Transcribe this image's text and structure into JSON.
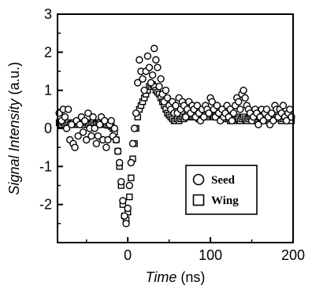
{
  "chart_data": {
    "type": "scatter",
    "title": "",
    "xlabel": "Time",
    "xlabel_unit": " (ns)",
    "ylabel": "Signal Intensity",
    "ylabel_unit": " (a.u.)",
    "xlim": [
      -85,
      200
    ],
    "ylim": [
      -3,
      3
    ],
    "xticks": [
      0,
      100,
      200
    ],
    "yticks": [
      -2,
      -1,
      0,
      1,
      2,
      3
    ],
    "grid": false,
    "legend_position": "lower-right",
    "series": [
      {
        "name": "Seed",
        "marker": "circle",
        "x": [
          -83,
          -80,
          -78,
          -76,
          -74,
          -72,
          -70,
          -68,
          -66,
          -64,
          -62,
          -60,
          -58,
          -56,
          -54,
          -52,
          -50,
          -48,
          -46,
          -44,
          -42,
          -40,
          -38,
          -36,
          -34,
          -32,
          -30,
          -28,
          -26,
          -24,
          -22,
          -20,
          -18,
          -16,
          -14,
          -12,
          -10,
          -8,
          -6,
          -4,
          -2,
          0,
          2,
          4,
          6,
          8,
          10,
          12,
          14,
          16,
          18,
          20,
          22,
          24,
          26,
          28,
          30,
          32,
          34,
          36,
          38,
          40,
          42,
          44,
          46,
          48,
          50,
          52,
          54,
          56,
          58,
          60,
          62,
          64,
          66,
          68,
          70,
          72,
          74,
          76,
          78,
          80,
          82,
          84,
          86,
          88,
          90,
          92,
          94,
          96,
          98,
          100,
          102,
          104,
          106,
          108,
          110,
          112,
          114,
          116,
          118,
          120,
          122,
          124,
          126,
          128,
          130,
          132,
          134,
          136,
          138,
          140,
          142,
          144,
          146,
          148,
          150,
          152,
          154,
          156,
          158,
          160,
          162,
          164,
          166,
          168,
          170,
          172,
          174,
          176,
          178,
          180,
          182,
          184,
          186,
          188,
          190,
          192,
          194,
          196,
          198
        ],
        "y": [
          0.4,
          0.2,
          0.5,
          0.3,
          0.0,
          0.5,
          -0.3,
          0.1,
          -0.4,
          -0.5,
          0.2,
          -0.2,
          0.1,
          0.3,
          -0.1,
          0.2,
          -0.3,
          0.4,
          0.0,
          -0.2,
          0.3,
          0.0,
          -0.4,
          -0.2,
          0.1,
          0.3,
          -0.3,
          0.2,
          -0.5,
          -0.3,
          0.1,
          0.2,
          -0.2,
          0.0,
          -0.3,
          -0.6,
          -0.9,
          -1.4,
          -1.9,
          -2.3,
          -2.5,
          -2.1,
          -1.5,
          -0.9,
          -0.4,
          0.0,
          0.4,
          1.2,
          1.8,
          1.5,
          1.3,
          1.0,
          1.5,
          1.9,
          1.6,
          1.2,
          1.4,
          2.1,
          1.8,
          1.6,
          1.1,
          1.3,
          0.9,
          0.7,
          1.0,
          0.8,
          0.6,
          0.5,
          0.7,
          0.4,
          0.6,
          0.4,
          0.8,
          0.5,
          0.7,
          0.6,
          0.3,
          0.5,
          0.7,
          0.4,
          0.6,
          0.5,
          0.3,
          0.6,
          0.4,
          0.2,
          0.5,
          0.3,
          0.6,
          0.5,
          0.4,
          0.8,
          0.7,
          0.5,
          0.3,
          0.6,
          0.4,
          0.2,
          0.5,
          0.3,
          0.4,
          0.6,
          0.3,
          0.5,
          0.2,
          0.4,
          0.6,
          0.8,
          0.7,
          0.5,
          0.9,
          1.0,
          0.8,
          0.6,
          0.5,
          0.4,
          0.2,
          0.3,
          0.5,
          0.4,
          0.1,
          0.3,
          0.5,
          0.2,
          0.4,
          0.5,
          0.3,
          0.1,
          0.4,
          0.2,
          0.6,
          0.5,
          0.3,
          0.5,
          0.4,
          0.6,
          0.3,
          0.2,
          0.4,
          0.5,
          0.3
        ]
      },
      {
        "name": "Wing",
        "marker": "square",
        "x": [
          -83,
          -80,
          -78,
          -76,
          -74,
          -72,
          -70,
          -68,
          -66,
          -64,
          -62,
          -60,
          -58,
          -56,
          -54,
          -52,
          -50,
          -48,
          -46,
          -44,
          -42,
          -40,
          -38,
          -36,
          -34,
          -32,
          -30,
          -28,
          -26,
          -24,
          -22,
          -20,
          -18,
          -16,
          -14,
          -12,
          -10,
          -8,
          -6,
          -4,
          -2,
          0,
          2,
          4,
          6,
          8,
          10,
          12,
          14,
          16,
          18,
          20,
          22,
          24,
          26,
          28,
          30,
          32,
          34,
          36,
          38,
          40,
          42,
          44,
          46,
          48,
          50,
          52,
          54,
          56,
          58,
          60,
          62,
          64,
          66,
          68,
          70,
          72,
          74,
          76,
          78,
          80,
          82,
          84,
          86,
          88,
          90,
          92,
          94,
          96,
          98,
          100,
          102,
          104,
          106,
          108,
          110,
          112,
          114,
          116,
          118,
          120,
          122,
          124,
          126,
          128,
          130,
          132,
          134,
          136,
          138,
          140,
          142,
          144,
          146,
          148,
          150,
          152,
          154,
          156,
          158,
          160,
          162,
          164,
          166,
          168,
          170,
          172,
          174,
          176,
          178,
          180,
          182,
          184,
          186,
          188,
          190,
          192,
          194,
          196,
          198
        ],
        "y": [
          0.15,
          0.1,
          0.15,
          0.1,
          0.12,
          0.15,
          0.1,
          0.12,
          0.15,
          0.1,
          0.12,
          0.1,
          0.15,
          0.1,
          0.12,
          0.1,
          0.15,
          0.1,
          0.12,
          0.1,
          0.15,
          0.1,
          0.12,
          0.1,
          0.15,
          0.1,
          0.12,
          0.1,
          0.1,
          0.08,
          0.1,
          0.05,
          0.0,
          -0.1,
          -0.3,
          -0.6,
          -1.0,
          -1.5,
          -2.0,
          -2.3,
          -2.4,
          -2.2,
          -1.8,
          -1.3,
          -0.8,
          -0.4,
          0.0,
          0.3,
          0.5,
          0.6,
          0.7,
          0.8,
          0.9,
          1.0,
          1.1,
          1.1,
          1.15,
          1.1,
          1.0,
          0.95,
          0.9,
          0.8,
          0.7,
          0.6,
          0.5,
          0.4,
          0.35,
          0.3,
          0.25,
          0.2,
          0.2,
          0.25,
          0.2,
          0.25,
          0.3,
          0.25,
          0.3,
          0.35,
          0.3,
          0.35,
          0.3,
          0.3,
          0.35,
          0.3,
          0.25,
          0.3,
          0.35,
          0.4,
          0.35,
          0.3,
          0.35,
          0.4,
          0.35,
          0.3,
          0.35,
          0.4,
          0.35,
          0.3,
          0.25,
          0.3,
          0.25,
          0.3,
          0.25,
          0.2,
          0.25,
          0.2,
          0.25,
          0.3,
          0.25,
          0.2,
          0.25,
          0.3,
          0.25,
          0.2,
          0.25,
          0.3,
          0.25,
          0.2,
          0.25,
          0.3,
          0.35,
          0.3,
          0.25,
          0.3,
          0.25,
          0.2,
          0.25,
          0.3,
          0.35,
          0.3,
          0.25,
          0.3,
          0.25,
          0.3,
          0.2,
          0.25,
          0.3,
          0.25,
          0.2,
          0.25,
          0.2
        ]
      }
    ]
  }
}
